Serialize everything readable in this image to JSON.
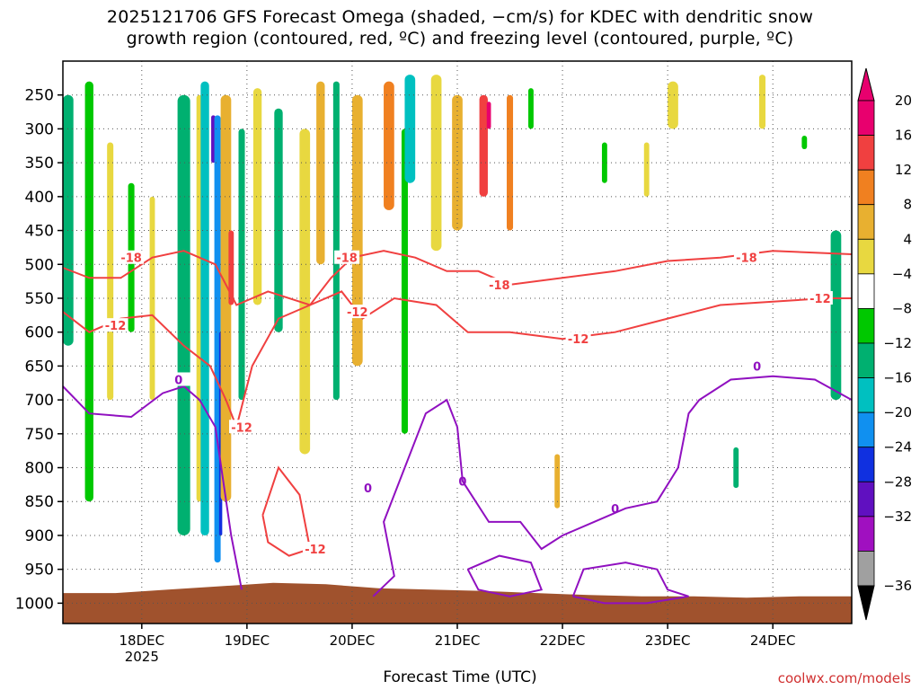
{
  "chart_data": {
    "type": "heatmap",
    "title_line1": "2025121706 GFS Forecast Omega (shaded, −cm/s) for KDEC with dendritic snow",
    "title_line2": "growth region (contoured, red, ºC) and freezing level (contoured, purple, ºC)",
    "xlabel": "Forecast Time (UTC)",
    "credit": "coolwx.com/models",
    "y_axis": {
      "unit": "hPa",
      "range": [
        200,
        1030
      ],
      "ticks": [
        250,
        300,
        350,
        400,
        450,
        500,
        550,
        600,
        650,
        700,
        750,
        800,
        850,
        900,
        950,
        1000
      ],
      "tick_labels": [
        "250",
        "300",
        "350",
        "400",
        "450",
        "500",
        "550",
        "600",
        "650",
        "700",
        "750",
        "800",
        "850",
        "900",
        "950",
        "1000"
      ]
    },
    "x_axis": {
      "unit": "days from 18DEC 00Z",
      "range": [
        -0.75,
        6.75
      ],
      "ticks": [
        0,
        1,
        2,
        3,
        4,
        5,
        6
      ],
      "tick_labels": [
        "18DEC",
        "19DEC",
        "20DEC",
        "21DEC",
        "22DEC",
        "23DEC",
        "24DEC"
      ],
      "year_label": "2025"
    },
    "colorbar": {
      "labels": [
        "20",
        "16",
        "12",
        "8",
        "4",
        "−4",
        "−8",
        "−12",
        "−16",
        "−20",
        "−24",
        "−28",
        "−32",
        "−36"
      ],
      "colors": [
        "#e8006e",
        "#f04040",
        "#f08020",
        "#e8b030",
        "#e8d840",
        "#ffffff",
        "#00c800",
        "#00b070",
        "#00c0c0",
        "#1090f0",
        "#1030e0",
        "#6010c0",
        "#a010c0",
        "#a0a0a0"
      ]
    },
    "omega_regions": [
      {
        "x": -0.7,
        "p1": 250,
        "p2": 620,
        "w": 0.1,
        "value": -8
      },
      {
        "x": -0.5,
        "p1": 230,
        "p2": 850,
        "w": 0.08,
        "value": -6
      },
      {
        "x": -0.3,
        "p1": 320,
        "p2": 700,
        "w": 0.06,
        "value": 6
      },
      {
        "x": -0.1,
        "p1": 380,
        "p2": 600,
        "w": 0.06,
        "value": -6
      },
      {
        "x": 0.1,
        "p1": 400,
        "p2": 700,
        "w": 0.05,
        "value": 6
      },
      {
        "x": 0.4,
        "p1": 250,
        "p2": 900,
        "w": 0.12,
        "value": -8
      },
      {
        "x": 0.55,
        "p1": 250,
        "p2": 850,
        "w": 0.06,
        "value": 6
      },
      {
        "x": 0.6,
        "p1": 230,
        "p2": 900,
        "w": 0.08,
        "value": -14
      },
      {
        "x": 0.68,
        "p1": 280,
        "p2": 350,
        "w": 0.04,
        "value": -26
      },
      {
        "x": 0.72,
        "p1": 280,
        "p2": 940,
        "w": 0.06,
        "value": -18
      },
      {
        "x": 0.75,
        "p1": 600,
        "p2": 900,
        "w": 0.03,
        "value": -22
      },
      {
        "x": 0.8,
        "p1": 250,
        "p2": 850,
        "w": 0.1,
        "value": 10
      },
      {
        "x": 0.85,
        "p1": 450,
        "p2": 560,
        "w": 0.05,
        "value": 18
      },
      {
        "x": 0.95,
        "p1": 300,
        "p2": 700,
        "w": 0.06,
        "value": -10
      },
      {
        "x": 1.1,
        "p1": 240,
        "p2": 560,
        "w": 0.08,
        "value": 6
      },
      {
        "x": 1.3,
        "p1": 270,
        "p2": 600,
        "w": 0.08,
        "value": -8
      },
      {
        "x": 1.55,
        "p1": 300,
        "p2": 780,
        "w": 0.1,
        "value": 6
      },
      {
        "x": 1.7,
        "p1": 230,
        "p2": 500,
        "w": 0.08,
        "value": 8
      },
      {
        "x": 1.85,
        "p1": 230,
        "p2": 700,
        "w": 0.06,
        "value": -8
      },
      {
        "x": 2.05,
        "p1": 250,
        "p2": 650,
        "w": 0.1,
        "value": 8
      },
      {
        "x": 2.35,
        "p1": 230,
        "p2": 420,
        "w": 0.1,
        "value": 12
      },
      {
        "x": 2.5,
        "p1": 300,
        "p2": 750,
        "w": 0.06,
        "value": -6
      },
      {
        "x": 2.55,
        "p1": 220,
        "p2": 380,
        "w": 0.1,
        "value": -14
      },
      {
        "x": 2.8,
        "p1": 220,
        "p2": 480,
        "w": 0.1,
        "value": 6
      },
      {
        "x": 3.0,
        "p1": 250,
        "p2": 450,
        "w": 0.1,
        "value": 10
      },
      {
        "x": 3.25,
        "p1": 250,
        "p2": 400,
        "w": 0.08,
        "value": 18
      },
      {
        "x": 3.3,
        "p1": 260,
        "p2": 300,
        "w": 0.04,
        "value": 22
      },
      {
        "x": 3.5,
        "p1": 250,
        "p2": 450,
        "w": 0.06,
        "value": 14
      },
      {
        "x": 3.7,
        "p1": 240,
        "p2": 300,
        "w": 0.05,
        "value": -6
      },
      {
        "x": 3.95,
        "p1": 780,
        "p2": 860,
        "w": 0.05,
        "value": 8
      },
      {
        "x": 4.4,
        "p1": 320,
        "p2": 380,
        "w": 0.05,
        "value": -6
      },
      {
        "x": 4.8,
        "p1": 320,
        "p2": 400,
        "w": 0.05,
        "value": 6
      },
      {
        "x": 5.05,
        "p1": 230,
        "p2": 300,
        "w": 0.1,
        "value": 6
      },
      {
        "x": 5.65,
        "p1": 770,
        "p2": 830,
        "w": 0.05,
        "value": -8
      },
      {
        "x": 5.9,
        "p1": 220,
        "p2": 300,
        "w": 0.06,
        "value": 6
      },
      {
        "x": 6.3,
        "p1": 310,
        "p2": 330,
        "w": 0.05,
        "value": -6
      },
      {
        "x": 6.6,
        "p1": 450,
        "p2": 700,
        "w": 0.1,
        "value": -8
      }
    ],
    "contours": {
      "dgz_top": {
        "label": "-18",
        "color": "#f04040",
        "label_at": [
          [
            -0.1,
            490
          ],
          [
            1.95,
            490
          ],
          [
            3.4,
            530
          ],
          [
            5.75,
            490
          ]
        ],
        "points": [
          [
            -0.75,
            505
          ],
          [
            -0.5,
            520
          ],
          [
            -0.2,
            520
          ],
          [
            0.1,
            490
          ],
          [
            0.4,
            480
          ],
          [
            0.7,
            500
          ],
          [
            0.9,
            560
          ],
          [
            1.2,
            540
          ],
          [
            1.6,
            560
          ],
          [
            1.8,
            520
          ],
          [
            2.0,
            490
          ],
          [
            2.3,
            480
          ],
          [
            2.6,
            490
          ],
          [
            2.9,
            510
          ],
          [
            3.2,
            510
          ],
          [
            3.5,
            530
          ],
          [
            4.0,
            520
          ],
          [
            4.5,
            510
          ],
          [
            5.0,
            495
          ],
          [
            5.5,
            490
          ],
          [
            6.0,
            480
          ],
          [
            6.75,
            485
          ]
        ]
      },
      "dgz_bottom": {
        "label": "-12",
        "color": "#f04040",
        "label_at": [
          [
            -0.25,
            590
          ],
          [
            0.95,
            740
          ],
          [
            2.05,
            570
          ],
          [
            4.15,
            610
          ],
          [
            6.45,
            550
          ]
        ],
        "points": [
          [
            -0.75,
            570
          ],
          [
            -0.5,
            600
          ],
          [
            -0.2,
            580
          ],
          [
            0.1,
            575
          ],
          [
            0.4,
            620
          ],
          [
            0.65,
            650
          ],
          [
            0.8,
            700
          ],
          [
            0.9,
            740
          ],
          [
            1.05,
            650
          ],
          [
            1.3,
            580
          ],
          [
            1.6,
            560
          ],
          [
            1.9,
            540
          ],
          [
            2.1,
            580
          ],
          [
            2.4,
            550
          ],
          [
            2.8,
            560
          ],
          [
            3.1,
            600
          ],
          [
            3.5,
            600
          ],
          [
            4.0,
            610
          ],
          [
            4.5,
            600
          ],
          [
            5.0,
            580
          ],
          [
            5.5,
            560
          ],
          [
            6.0,
            555
          ],
          [
            6.5,
            550
          ],
          [
            6.75,
            550
          ]
        ]
      },
      "dgz_lobe": {
        "label": "-12",
        "color": "#f04040",
        "label_at": [
          [
            1.65,
            920
          ]
        ],
        "points": [
          [
            1.15,
            870
          ],
          [
            1.3,
            800
          ],
          [
            1.5,
            840
          ],
          [
            1.6,
            920
          ],
          [
            1.4,
            930
          ],
          [
            1.2,
            910
          ],
          [
            1.15,
            870
          ]
        ]
      },
      "freezing": {
        "label": "0",
        "color": "#9010c0",
        "label_at": [
          [
            0.35,
            670
          ],
          [
            2.15,
            830
          ],
          [
            3.05,
            820
          ],
          [
            4.5,
            860
          ],
          [
            5.85,
            650
          ]
        ],
        "points": [
          [
            -0.75,
            680
          ],
          [
            -0.5,
            720
          ],
          [
            -0.1,
            725
          ],
          [
            0.2,
            690
          ],
          [
            0.4,
            680
          ],
          [
            0.55,
            700
          ],
          [
            0.7,
            740
          ],
          [
            0.85,
            900
          ],
          [
            0.95,
            980
          ]
        ]
      },
      "freezing_2": {
        "label": "0",
        "color": "#9010c0",
        "points": [
          [
            2.2,
            990
          ],
          [
            2.4,
            960
          ],
          [
            2.3,
            880
          ],
          [
            2.5,
            800
          ],
          [
            2.7,
            720
          ],
          [
            2.9,
            700
          ],
          [
            3.0,
            740
          ],
          [
            3.05,
            820
          ],
          [
            3.3,
            880
          ],
          [
            3.6,
            880
          ],
          [
            3.8,
            920
          ],
          [
            4.0,
            900
          ],
          [
            4.3,
            880
          ],
          [
            4.6,
            860
          ],
          [
            4.9,
            850
          ],
          [
            5.1,
            800
          ],
          [
            5.2,
            720
          ],
          [
            5.3,
            700
          ],
          [
            5.6,
            670
          ],
          [
            6.0,
            665
          ],
          [
            6.4,
            670
          ],
          [
            6.75,
            700
          ]
        ]
      },
      "freezing_3": {
        "label": "0",
        "color": "#9010c0",
        "points": [
          [
            3.1,
            950
          ],
          [
            3.4,
            930
          ],
          [
            3.7,
            940
          ],
          [
            3.8,
            980
          ],
          [
            3.5,
            990
          ],
          [
            3.2,
            980
          ],
          [
            3.1,
            950
          ]
        ]
      },
      "freezing_4": {
        "label": "0",
        "color": "#9010c0",
        "points": [
          [
            4.1,
            990
          ],
          [
            4.2,
            950
          ],
          [
            4.6,
            940
          ],
          [
            4.9,
            950
          ],
          [
            5.0,
            980
          ],
          [
            5.2,
            990
          ],
          [
            4.8,
            1000
          ],
          [
            4.4,
            1000
          ],
          [
            4.1,
            990
          ]
        ]
      }
    },
    "terrain_top_hpa": [
      985,
      985,
      980,
      975,
      970,
      972,
      978,
      980,
      982,
      985,
      988,
      990,
      990,
      992,
      990,
      990
    ]
  }
}
